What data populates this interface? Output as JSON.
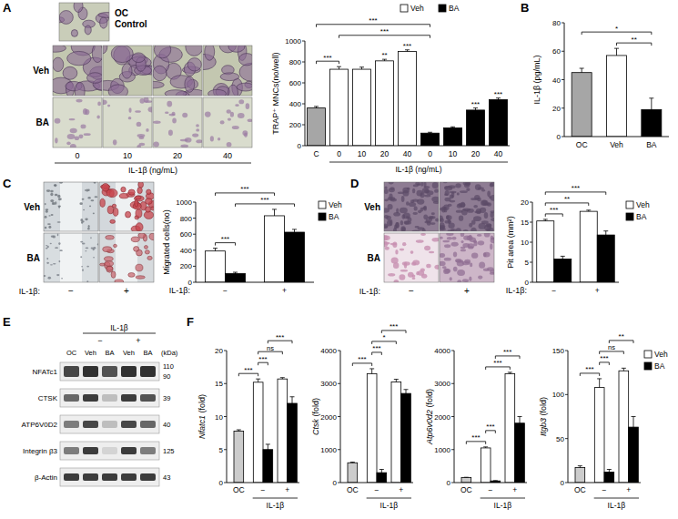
{
  "chart_data": [
    {
      "type": "bar",
      "ylabel": "TRAP⁺ MNCs(no/well)",
      "xlabel": "IL-1β (ng/mL)",
      "categories": [
        "C",
        "0",
        "10",
        "20",
        "40",
        "0",
        "10",
        "20",
        "40"
      ],
      "ylim": [
        0,
        1000
      ],
      "yticks": [
        0,
        200,
        400,
        600,
        800,
        1000
      ],
      "legend": "top",
      "series": [
        {
          "color": "#a6a6a6",
          "values": [
            360,
            null,
            null,
            null,
            null,
            null,
            null,
            null,
            null
          ],
          "errors": [
            15,
            null,
            null,
            null,
            null,
            null,
            null,
            null,
            null
          ]
        },
        {
          "name": "Veh",
          "color": "#ffffff",
          "values": [
            null,
            730,
            730,
            810,
            900,
            null,
            null,
            null,
            null
          ],
          "errors": [
            null,
            25,
            20,
            15,
            15,
            null,
            null,
            null,
            null
          ],
          "significance": [
            null,
            null,
            null,
            "**",
            "***",
            null,
            null,
            null,
            null
          ]
        },
        {
          "name": "BA",
          "color": "#000000",
          "values": [
            null,
            null,
            null,
            null,
            null,
            120,
            170,
            340,
            440
          ],
          "errors": [
            null,
            null,
            null,
            null,
            null,
            8,
            10,
            20,
            15
          ],
          "significance": [
            null,
            null,
            null,
            null,
            null,
            null,
            null,
            "***",
            "***"
          ]
        }
      ],
      "comparisons": [
        {
          "from": [
            0,
            0
          ],
          "to": [
            1,
            1
          ],
          "label": "***"
        },
        {
          "from": [
            1,
            1
          ],
          "to": [
            2,
            5
          ],
          "label": "***"
        },
        {
          "from": [
            0,
            0
          ],
          "to": [
            2,
            5
          ],
          "label": "***"
        }
      ]
    },
    {
      "type": "bar",
      "ylabel": "IL-1β (pg/mL)",
      "categories": [
        "OC",
        "Veh",
        "BA"
      ],
      "ylim": [
        0,
        80
      ],
      "yticks": [
        0,
        20,
        40,
        60,
        80
      ],
      "series": [
        {
          "colors": [
            "#a6a6a6",
            "#ffffff",
            "#000000"
          ],
          "values": [
            45,
            57,
            19
          ],
          "errors": [
            3,
            5,
            8
          ]
        }
      ],
      "comparisons": [
        {
          "from": [
            0,
            1
          ],
          "to": [
            0,
            2
          ],
          "label": "**"
        },
        {
          "from": [
            0,
            0
          ],
          "to": [
            0,
            2
          ],
          "label": "*"
        }
      ]
    },
    {
      "type": "bar",
      "ylabel": "Migrated cells(no)",
      "xlabel": "IL-1β:",
      "categories": [
        "−",
        "+"
      ],
      "ylim": [
        0,
        1000
      ],
      "yticks": [
        0,
        200,
        400,
        600,
        800,
        1000
      ],
      "legend": "right",
      "series": [
        {
          "name": "Veh",
          "color": "#ffffff",
          "values": [
            390,
            830
          ],
          "errors": [
            35,
            80
          ]
        },
        {
          "name": "BA",
          "color": "#000000",
          "values": [
            110,
            625
          ],
          "errors": [
            15,
            35
          ]
        }
      ],
      "comparisons": [
        {
          "from": [
            0,
            0
          ],
          "to": [
            1,
            0
          ],
          "label": "***"
        },
        {
          "from": [
            1,
            0
          ],
          "to": [
            1,
            1
          ],
          "label": "***"
        },
        {
          "from": [
            0,
            0
          ],
          "to": [
            0,
            1
          ],
          "label": "***"
        }
      ]
    },
    {
      "type": "bar",
      "ylabel": "Pit area (mm²)",
      "xlabel": "IL-1β:",
      "categories": [
        "−",
        "+"
      ],
      "ylim": [
        0,
        20
      ],
      "yticks": [
        0,
        5,
        10,
        15,
        20
      ],
      "legend": "right",
      "series": [
        {
          "name": "Veh",
          "color": "#ffffff",
          "values": [
            15.3,
            17.7
          ],
          "errors": [
            0.4,
            0.3
          ]
        },
        {
          "name": "BA",
          "color": "#000000",
          "values": [
            5.8,
            11.8
          ],
          "errors": [
            0.7,
            1.0
          ]
        }
      ],
      "comparisons": [
        {
          "from": [
            0,
            0
          ],
          "to": [
            1,
            0
          ],
          "label": "***"
        },
        {
          "from": [
            0,
            0
          ],
          "to": [
            0,
            1
          ],
          "label": "**"
        },
        {
          "from": [
            0,
            0
          ],
          "to": [
            1,
            1
          ],
          "label": "***"
        }
      ]
    },
    {
      "type": "bar",
      "ylabel": "Nfatc1 (fold)",
      "xlabel": "IL-1β",
      "categories": [
        "OC",
        "−",
        "+"
      ],
      "ylim": [
        0,
        20
      ],
      "yticks": [
        0,
        5,
        10,
        15,
        20
      ],
      "series": [
        {
          "color": "#cccccc",
          "values": [
            7.8,
            null,
            null
          ],
          "errors": [
            0.2,
            null,
            null
          ]
        },
        {
          "name": "Veh",
          "color": "#ffffff",
          "values": [
            null,
            15.2,
            15.7
          ],
          "errors": [
            null,
            0.5,
            0.2
          ]
        },
        {
          "name": "BA",
          "color": "#000000",
          "values": [
            null,
            5.0,
            12.0
          ],
          "errors": [
            null,
            0.8,
            1.0
          ]
        }
      ],
      "comparisons": [
        {
          "from": [
            0,
            0
          ],
          "to": [
            1,
            1
          ],
          "label": "***"
        },
        {
          "from": [
            1,
            1
          ],
          "to": [
            2,
            1
          ],
          "label": "***"
        },
        {
          "from": [
            1,
            1
          ],
          "to": [
            1,
            2
          ],
          "label": "ns"
        },
        {
          "from": [
            2,
            1
          ],
          "to": [
            2,
            2
          ],
          "label": "***"
        }
      ]
    },
    {
      "type": "bar",
      "ylabel": "Ctsk (fold)",
      "xlabel": "IL-1β",
      "categories": [
        "OC",
        "−",
        "+"
      ],
      "ylim": [
        0,
        4000
      ],
      "yticks": [
        0,
        1000,
        2000,
        3000,
        4000
      ],
      "series": [
        {
          "color": "#cccccc",
          "values": [
            600,
            null,
            null
          ],
          "errors": [
            20,
            null,
            null
          ]
        },
        {
          "name": "Veh",
          "color": "#ffffff",
          "values": [
            null,
            3300,
            3050
          ],
          "errors": [
            null,
            150,
            80
          ]
        },
        {
          "name": "BA",
          "color": "#000000",
          "values": [
            null,
            300,
            2700
          ],
          "errors": [
            null,
            100,
            120
          ]
        }
      ],
      "comparisons": [
        {
          "from": [
            0,
            0
          ],
          "to": [
            1,
            1
          ],
          "label": "***"
        },
        {
          "from": [
            1,
            1
          ],
          "to": [
            2,
            1
          ],
          "label": "***"
        },
        {
          "from": [
            1,
            1
          ],
          "to": [
            1,
            2
          ],
          "label": "*"
        },
        {
          "from": [
            2,
            1
          ],
          "to": [
            2,
            2
          ],
          "label": "***"
        }
      ]
    },
    {
      "type": "bar",
      "ylabel": "Atp6v0d2 (fold)",
      "xlabel": "IL-1β",
      "categories": [
        "OC",
        "−",
        "+"
      ],
      "ylim": [
        0,
        4000
      ],
      "yticks": [
        0,
        1000,
        2000,
        3000,
        4000
      ],
      "series": [
        {
          "color": "#cccccc",
          "values": [
            150,
            null,
            null
          ],
          "errors": [
            10,
            null,
            null
          ]
        },
        {
          "name": "Veh",
          "color": "#ffffff",
          "values": [
            null,
            1050,
            3300
          ],
          "errors": [
            null,
            30,
            40
          ]
        },
        {
          "name": "BA",
          "color": "#000000",
          "values": [
            null,
            50,
            1800
          ],
          "errors": [
            null,
            10,
            200
          ]
        }
      ],
      "comparisons": [
        {
          "from": [
            0,
            0
          ],
          "to": [
            1,
            1
          ],
          "label": "***"
        },
        {
          "from": [
            1,
            1
          ],
          "to": [
            2,
            1
          ],
          "label": "***"
        },
        {
          "from": [
            1,
            1
          ],
          "to": [
            1,
            2
          ],
          "label": "***"
        },
        {
          "from": [
            2,
            1
          ],
          "to": [
            2,
            2
          ],
          "label": "***"
        }
      ]
    },
    {
      "type": "bar",
      "ylabel": "Itgb3 (fold)",
      "xlabel": "IL-1β",
      "categories": [
        "OC",
        "−",
        "+"
      ],
      "ylim": [
        0,
        150
      ],
      "yticks": [
        0,
        50,
        100,
        150
      ],
      "legend": "right",
      "series": [
        {
          "color": "#cccccc",
          "values": [
            17,
            null,
            null
          ],
          "errors": [
            2,
            null,
            null
          ]
        },
        {
          "name": "Veh",
          "color": "#ffffff",
          "values": [
            null,
            108,
            127
          ],
          "errors": [
            null,
            10,
            3
          ]
        },
        {
          "name": "BA",
          "color": "#000000",
          "values": [
            null,
            12,
            63
          ],
          "errors": [
            null,
            3,
            12
          ]
        }
      ],
      "comparisons": [
        {
          "from": [
            0,
            0
          ],
          "to": [
            1,
            1
          ],
          "label": "***"
        },
        {
          "from": [
            1,
            1
          ],
          "to": [
            2,
            1
          ],
          "label": "***"
        },
        {
          "from": [
            1,
            1
          ],
          "to": [
            1,
            2
          ],
          "label": "ns"
        },
        {
          "from": [
            2,
            1
          ],
          "to": [
            2,
            2
          ],
          "label": "**"
        }
      ]
    }
  ],
  "panels": {
    "letters": [
      "A",
      "B",
      "C",
      "D",
      "E",
      "F"
    ]
  },
  "micrographs": {
    "A": {
      "control_label": [
        "OC",
        "Control"
      ],
      "rows": [
        "Veh",
        "BA"
      ],
      "columns": [
        "0",
        "10",
        "20",
        "40"
      ],
      "xlabel": "IL-1β (ng/mL)"
    },
    "C": {
      "rows": [
        "Veh",
        "BA"
      ],
      "columns": [
        "−",
        "+"
      ],
      "xlabel": "IL-1β:"
    },
    "D": {
      "rows": [
        "Veh",
        "BA"
      ],
      "columns": [
        "−",
        "+"
      ],
      "xlabel": "IL-1β:"
    }
  },
  "blot": {
    "group_label": "IL-1β",
    "signs": [
      null,
      "−",
      "−",
      "+",
      "+"
    ],
    "lanes": [
      "OC",
      "Veh",
      "BA",
      "Veh",
      "BA"
    ],
    "unit": "(kDa)",
    "rows": [
      {
        "name": "NFATc1",
        "kda": [
          "110",
          "90"
        ],
        "band_strength": [
          0.85,
          0.95,
          0.8,
          0.95,
          0.95
        ]
      },
      {
        "name": "CTSK",
        "kda": [
          "39"
        ],
        "band_strength": [
          0.7,
          0.9,
          0.3,
          0.9,
          0.8
        ]
      },
      {
        "name": "ATP6V0D2",
        "kda": [
          "40"
        ],
        "band_strength": [
          0.6,
          0.85,
          0.3,
          0.85,
          0.7
        ]
      },
      {
        "name": "Integrin β3",
        "kda": [
          "125"
        ],
        "band_strength": [
          0.6,
          0.9,
          0.2,
          0.9,
          0.6
        ]
      },
      {
        "name": "β-Actin",
        "kda": [
          "43"
        ],
        "band_strength": [
          0.9,
          0.9,
          0.9,
          0.9,
          0.9
        ]
      }
    ]
  }
}
